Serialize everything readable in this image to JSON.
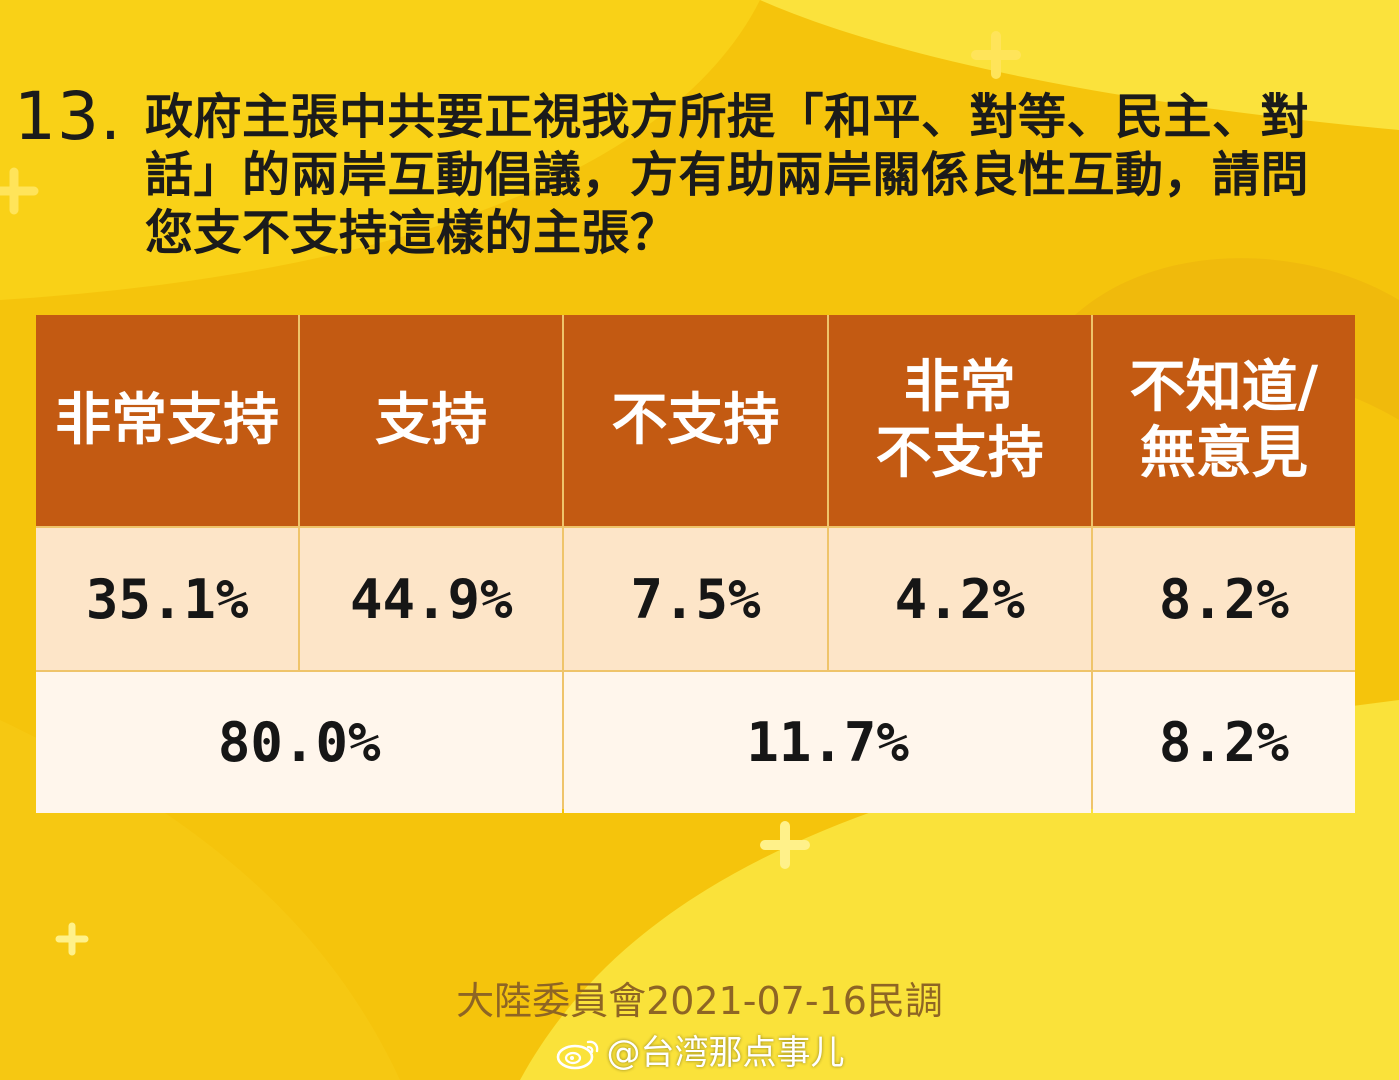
{
  "question": {
    "number": "13.",
    "text": "政府主張中共要正視我方所提「和平、對等、民主、對話」的兩岸互動倡議，方有助兩岸關係良性互動，請問您支不支持這樣的主張？"
  },
  "chart_data": {
    "type": "table",
    "columns": [
      {
        "label": "非常支持",
        "value": "35.1%"
      },
      {
        "label": "支持",
        "value": "44.9%"
      },
      {
        "label": "不支持",
        "value": "7.5%"
      },
      {
        "label": "非常\n不支持",
        "value": "4.2%"
      },
      {
        "label": "不知道/\n無意見",
        "value": "8.2%"
      }
    ],
    "groups": [
      {
        "covers": [
          "非常支持",
          "支持"
        ],
        "value": "80.0%"
      },
      {
        "covers": [
          "不支持",
          "非常不支持"
        ],
        "value": "11.7%"
      },
      {
        "covers": [
          "不知道/無意見"
        ],
        "value": "8.2%"
      }
    ]
  },
  "footer": {
    "source": "大陸委員會2021-07-16民調",
    "watermark": "@台湾那点事儿",
    "watermark_icon": "weibo-icon"
  },
  "colors": {
    "background": "#f7c90f",
    "header_fill": "#c35a12",
    "value_fill": "#fde5c8",
    "sum_fill": "#fff6ec"
  }
}
